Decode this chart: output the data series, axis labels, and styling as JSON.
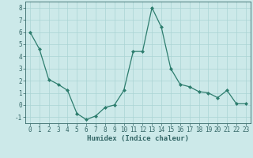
{
  "x": [
    0,
    1,
    2,
    3,
    4,
    5,
    6,
    7,
    8,
    9,
    10,
    11,
    12,
    13,
    14,
    15,
    16,
    17,
    18,
    19,
    20,
    21,
    22,
    23
  ],
  "y": [
    6.0,
    4.6,
    2.1,
    1.7,
    1.2,
    -0.7,
    -1.2,
    -0.9,
    -0.2,
    0.0,
    1.2,
    4.4,
    4.4,
    8.0,
    6.4,
    3.0,
    1.7,
    1.5,
    1.1,
    1.0,
    0.6,
    1.2,
    0.1,
    0.1
  ],
  "line_color": "#2d7d6e",
  "marker": "D",
  "marker_size": 2.0,
  "bg_color": "#cce9e9",
  "grid_color": "#aad4d4",
  "xlabel": "Humidex (Indice chaleur)",
  "xlim": [
    -0.5,
    23.5
  ],
  "ylim": [
    -1.5,
    8.5
  ],
  "yticks": [
    -1,
    0,
    1,
    2,
    3,
    4,
    5,
    6,
    7,
    8
  ],
  "xticks": [
    0,
    1,
    2,
    3,
    4,
    5,
    6,
    7,
    8,
    9,
    10,
    11,
    12,
    13,
    14,
    15,
    16,
    17,
    18,
    19,
    20,
    21,
    22,
    23
  ],
  "tick_fontsize": 5.5,
  "xlabel_fontsize": 6.5,
  "font_family": "monospace",
  "tick_color": "#336666",
  "spine_color": "#336666"
}
